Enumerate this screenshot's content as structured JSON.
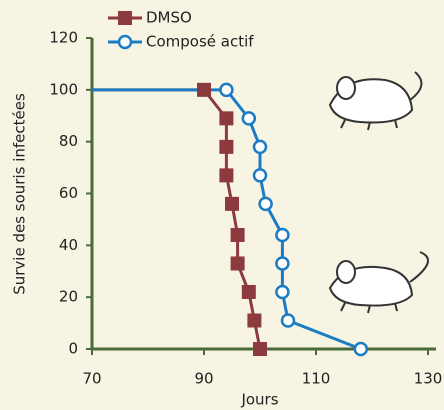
{
  "chart_data": {
    "type": "line",
    "x_label": "Jours",
    "y_label": "Survie des souris infectées",
    "xlim": [
      70,
      130
    ],
    "xticks": [
      70,
      90,
      110,
      130
    ],
    "ylim": [
      0,
      120
    ],
    "yticks": [
      0,
      20,
      40,
      60,
      80,
      100,
      120
    ],
    "axis_color": "#4a6b3a",
    "series": [
      {
        "name": "DMSO",
        "color": "#8c3a3e",
        "marker": "square",
        "x": [
          70,
          90,
          94,
          94,
          94,
          95,
          96,
          96,
          98,
          99,
          100
        ],
        "values": [
          100,
          100,
          89,
          78,
          67,
          56,
          44,
          33,
          22,
          11,
          0
        ]
      },
      {
        "name": "Composé actif",
        "color": "#1b7cc4",
        "marker": "circle",
        "x": [
          70,
          94,
          98,
          100,
          100,
          101,
          104,
          104,
          104,
          105,
          118
        ],
        "values": [
          100,
          100,
          89,
          78,
          67,
          56,
          44,
          33,
          22,
          11,
          0
        ]
      }
    ]
  }
}
